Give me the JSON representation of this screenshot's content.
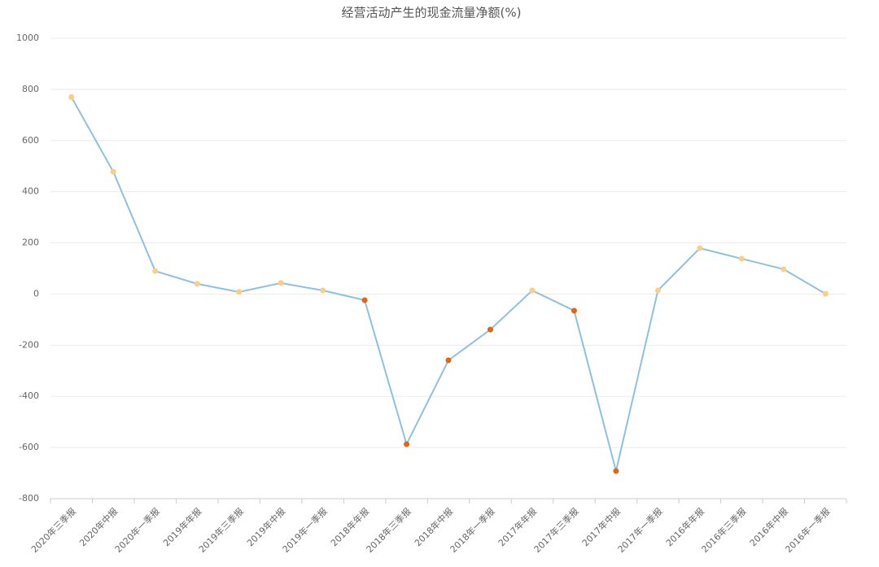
{
  "chart_data": {
    "type": "line",
    "title": "经营活动产生的现金流量净额(%)",
    "categories": [
      "2020年三季报",
      "2020年中报",
      "2020年一季报",
      "2019年年报",
      "2019年三季报",
      "2019年中报",
      "2019年一季报",
      "2018年年报",
      "2018年三季报",
      "2018年中报",
      "2018年一季报",
      "2017年年报",
      "2017年三季报",
      "2017年中报",
      "2017年一季报",
      "2016年年报",
      "2016年三季报",
      "2016年中报",
      "2016年一季报"
    ],
    "values": [
      770,
      478,
      90,
      40,
      8,
      43,
      14,
      -24,
      -587,
      -259,
      -139,
      14,
      -65,
      -692,
      14,
      179,
      138,
      97,
      1
    ],
    "color": "#8ec1e0",
    "positive_color": "#f8cf85",
    "negative_color": "#e4650f",
    "ylim": [
      -800,
      1000
    ],
    "yticks": [
      -800,
      -600,
      -400,
      -200,
      0,
      200,
      400,
      600,
      800,
      1000
    ],
    "grid": true
  }
}
